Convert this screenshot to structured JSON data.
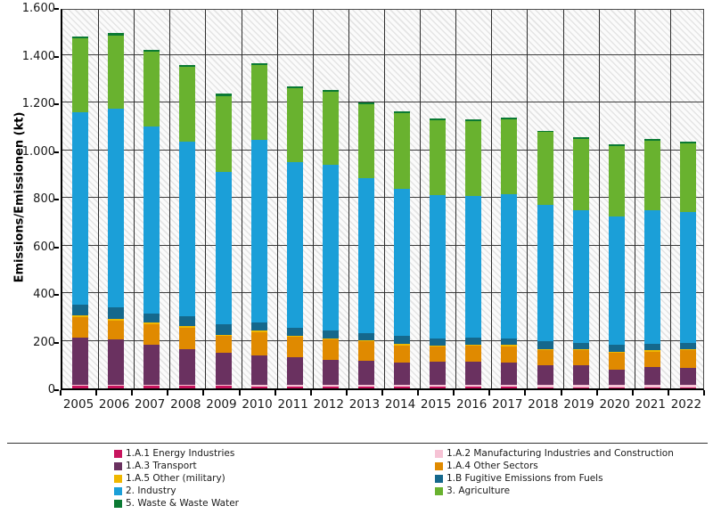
{
  "chart_data": {
    "type": "bar",
    "stacked": true,
    "ylabel": "Emissions/Emissionen (kt)",
    "xlabel": "",
    "ylim": [
      0,
      1600
    ],
    "ytick_step": 200,
    "ytick_labels": [
      "0",
      "200",
      "400",
      "600",
      "800",
      "1.000",
      "1.200",
      "1.400",
      "1.600"
    ],
    "grid": "horizontal and vertical category separators, hatched plot background",
    "legend_position": "bottom",
    "categories": [
      "2005",
      "2006",
      "2007",
      "2008",
      "2009",
      "2010",
      "2011",
      "2012",
      "2013",
      "2014",
      "2015",
      "2016",
      "2017",
      "2018",
      "2019",
      "2020",
      "2021",
      "2022"
    ],
    "series": [
      {
        "name": "1.A.1 Energy Industries",
        "color": "#c8155e",
        "values": [
          10,
          10,
          10,
          10,
          10,
          8,
          8,
          8,
          8,
          7,
          7,
          6,
          6,
          5,
          5,
          5,
          5,
          5
        ]
      },
      {
        "name": "1.A.2 Manufacturing Industries and Construction",
        "color": "#f6c3d5",
        "values": [
          5,
          5,
          5,
          5,
          5,
          6,
          6,
          6,
          6,
          7,
          7,
          8,
          8,
          9,
          9,
          10,
          10,
          10
        ]
      },
      {
        "name": "1.A.3 Transport",
        "color": "#6a3160",
        "values": [
          200,
          190,
          170,
          150,
          135,
          124,
          117,
          107,
          101,
          94,
          97,
          98,
          94,
          84,
          84,
          62,
          74,
          72
        ]
      },
      {
        "name": "1.A.4 Other Sectors",
        "color": "#e08a00",
        "values": [
          85,
          80,
          85,
          90,
          70,
          99,
          86,
          85,
          83,
          73,
          63,
          68,
          69,
          63,
          61,
          73,
          66,
          72
        ]
      },
      {
        "name": "1.A.5 Other (military)",
        "color": "#efb700",
        "values": [
          5,
          5,
          5,
          5,
          5,
          5,
          5,
          5,
          5,
          5,
          5,
          5,
          5,
          5,
          5,
          5,
          5,
          5
        ]
      },
      {
        "name": "1.B Fugitive Emissions from Fuels",
        "color": "#15688c",
        "values": [
          45,
          50,
          40,
          43,
          45,
          35,
          34,
          33,
          28,
          33,
          32,
          30,
          29,
          34,
          26,
          28,
          27,
          28
        ]
      },
      {
        "name": "2. Industry",
        "color": "#1b9fd8",
        "values": [
          810,
          835,
          785,
          733,
          640,
          767,
          694,
          694,
          652,
          619,
          602,
          594,
          605,
          572,
          557,
          537,
          560,
          549
        ]
      },
      {
        "name": "3. Agriculture",
        "color": "#69b22f",
        "values": [
          310,
          307,
          312,
          314,
          318,
          312,
          310,
          308,
          311,
          318,
          314,
          313,
          313,
          303,
          300,
          298,
          292,
          288
        ]
      },
      {
        "name": "5. Waste & Waste Water",
        "color": "#0b7a33",
        "values": [
          8,
          8,
          8,
          8,
          8,
          8,
          8,
          7,
          7,
          7,
          7,
          7,
          7,
          7,
          7,
          7,
          7,
          7
        ]
      }
    ],
    "legend_columns": {
      "left": [
        "1.A.1 Energy Industries",
        "1.A.3 Transport",
        "1.A.5 Other (military)",
        "2. Industry",
        "5. Waste & Waste Water"
      ],
      "right": [
        "1.A.2 Manufacturing Industries and Construction",
        "1.A.4 Other Sectors",
        "1.B Fugitive Emissions from Fuels",
        "3. Agriculture"
      ]
    }
  }
}
